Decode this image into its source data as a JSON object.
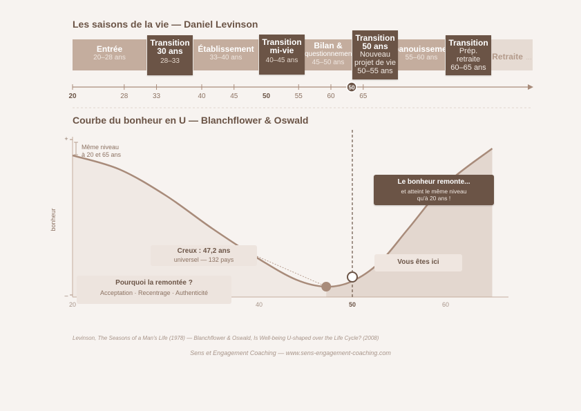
{
  "levinson": {
    "title": "Les saisons de la vie — Daniel Levinson",
    "seasons": [
      {
        "name": "Entrée",
        "ages": "20–28 ans"
      },
      {
        "name": "Établissement",
        "ages": "33–40 ans"
      },
      {
        "name": "Bilan &",
        "sub": "questionnement",
        "ages": "45–50 ans"
      },
      {
        "name": "Épanouissement",
        "ages": "55–60 ans"
      },
      {
        "name": "Retraite",
        "ages": "..."
      }
    ],
    "transitions": [
      {
        "name": "Transition",
        "name2": "30 ans",
        "sub": "",
        "ages": "28–33"
      },
      {
        "name": "Transition",
        "name2": "mi-vie",
        "sub": "",
        "ages": "40–45 ans"
      },
      {
        "name": "Transition",
        "name2": "50 ans",
        "sub": "Nouveau projet de vie",
        "ages": "50–55 ans"
      },
      {
        "name": "Transition",
        "name2": "",
        "sub": "Prép. retraite",
        "ages": "60–65 ans"
      }
    ],
    "axis_ticks": [
      "20",
      "28",
      "33",
      "40",
      "45",
      "50",
      "55",
      "60",
      "65"
    ],
    "marker": "50"
  },
  "chart_data": {
    "type": "line",
    "title": "Courbe du bonheur en U — Blanchflower & Oswald",
    "ylabel": "bonheur",
    "y_ticks": [
      "+",
      "–"
    ],
    "x_ticks": [
      "20",
      "40",
      "50",
      "60"
    ],
    "xlim": [
      20,
      65
    ],
    "x": [
      20,
      25,
      30,
      35,
      40,
      44,
      47.2,
      50,
      53,
      56,
      60,
      65
    ],
    "y": [
      0.95,
      0.85,
      0.66,
      0.42,
      0.2,
      0.05,
      0.0,
      0.04,
      0.18,
      0.42,
      0.74,
      1.0
    ],
    "minimum": {
      "x": 47.2,
      "label": "Creux : 47,2 ans",
      "sub": "universel — 132 pays"
    },
    "current": {
      "x": 50,
      "label": "Vous êtes ici"
    },
    "start_note": [
      "Même niveau",
      "à 20 et 65 ans"
    ],
    "recovery": {
      "title": "Le bonheur remonte...",
      "line1": "et atteint le même niveau",
      "line2": "qu'à 20 ans !"
    },
    "why": {
      "title": "Pourquoi la remontée ?",
      "items": "Acceptation · Recentrage · Authenticité"
    }
  },
  "footer": {
    "source": "Levinson, The Seasons of a Man's Life (1978) — Blanchflower & Oswald, Is Well-being U-shaped over the Life Cycle? (2008)",
    "credit": "Sens et Engagement Coaching — www.sens-engagement-coaching.com"
  },
  "colors": {
    "dark": "#6b5446",
    "mid": "#a88b7a",
    "light": "#c4ad9e",
    "pale": "#e6dbd3"
  }
}
